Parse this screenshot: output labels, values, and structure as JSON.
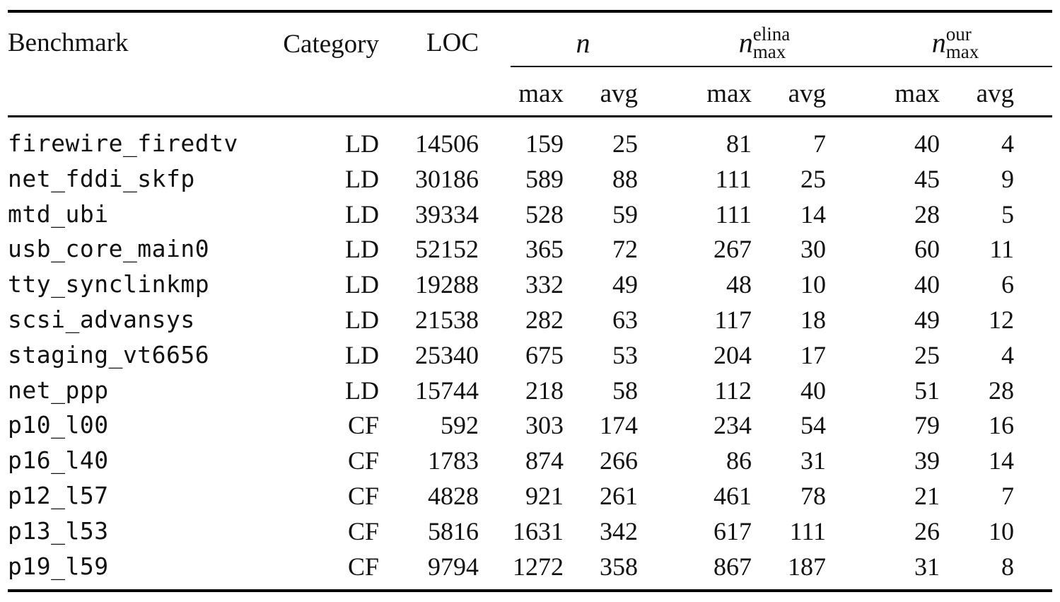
{
  "table": {
    "header": {
      "benchmark": "Benchmark",
      "category": "Category",
      "loc": "LOC",
      "n": "n",
      "n_elina_base": "n",
      "n_elina_sup": "elina",
      "n_elina_sub": "max",
      "n_our_base": "n",
      "n_our_sup": "our",
      "n_our_sub": "max",
      "max": "max",
      "avg": "avg"
    },
    "rows": [
      {
        "benchmark": "firewire_firedtv",
        "category": "LD",
        "loc": "14506",
        "n_max": "159",
        "n_avg": "25",
        "elina_max": "81",
        "elina_avg": "7",
        "our_max": "40",
        "our_avg": "4"
      },
      {
        "benchmark": "net_fddi_skfp",
        "category": "LD",
        "loc": "30186",
        "n_max": "589",
        "n_avg": "88",
        "elina_max": "111",
        "elina_avg": "25",
        "our_max": "45",
        "our_avg": "9"
      },
      {
        "benchmark": "mtd_ubi",
        "category": "LD",
        "loc": "39334",
        "n_max": "528",
        "n_avg": "59",
        "elina_max": "111",
        "elina_avg": "14",
        "our_max": "28",
        "our_avg": "5"
      },
      {
        "benchmark": "usb_core_main0",
        "category": "LD",
        "loc": "52152",
        "n_max": "365",
        "n_avg": "72",
        "elina_max": "267",
        "elina_avg": "30",
        "our_max": "60",
        "our_avg": "11"
      },
      {
        "benchmark": "tty_synclinkmp",
        "category": "LD",
        "loc": "19288",
        "n_max": "332",
        "n_avg": "49",
        "elina_max": "48",
        "elina_avg": "10",
        "our_max": "40",
        "our_avg": "6"
      },
      {
        "benchmark": "scsi_advansys",
        "category": "LD",
        "loc": "21538",
        "n_max": "282",
        "n_avg": "63",
        "elina_max": "117",
        "elina_avg": "18",
        "our_max": "49",
        "our_avg": "12"
      },
      {
        "benchmark": "staging_vt6656",
        "category": "LD",
        "loc": "25340",
        "n_max": "675",
        "n_avg": "53",
        "elina_max": "204",
        "elina_avg": "17",
        "our_max": "25",
        "our_avg": "4"
      },
      {
        "benchmark": "net_ppp",
        "category": "LD",
        "loc": "15744",
        "n_max": "218",
        "n_avg": "58",
        "elina_max": "112",
        "elina_avg": "40",
        "our_max": "51",
        "our_avg": "28"
      },
      {
        "benchmark": "p10_l00",
        "category": "CF",
        "loc": "592",
        "n_max": "303",
        "n_avg": "174",
        "elina_max": "234",
        "elina_avg": "54",
        "our_max": "79",
        "our_avg": "16"
      },
      {
        "benchmark": "p16_l40",
        "category": "CF",
        "loc": "1783",
        "n_max": "874",
        "n_avg": "266",
        "elina_max": "86",
        "elina_avg": "31",
        "our_max": "39",
        "our_avg": "14"
      },
      {
        "benchmark": "p12_l57",
        "category": "CF",
        "loc": "4828",
        "n_max": "921",
        "n_avg": "261",
        "elina_max": "461",
        "elina_avg": "78",
        "our_max": "21",
        "our_avg": "7"
      },
      {
        "benchmark": "p13_l53",
        "category": "CF",
        "loc": "5816",
        "n_max": "1631",
        "n_avg": "342",
        "elina_max": "617",
        "elina_avg": "111",
        "our_max": "26",
        "our_avg": "10"
      },
      {
        "benchmark": "p19_l59",
        "category": "CF",
        "loc": "9794",
        "n_max": "1272",
        "n_avg": "358",
        "elina_max": "867",
        "elina_avg": "187",
        "our_max": "31",
        "our_avg": "8"
      }
    ]
  }
}
